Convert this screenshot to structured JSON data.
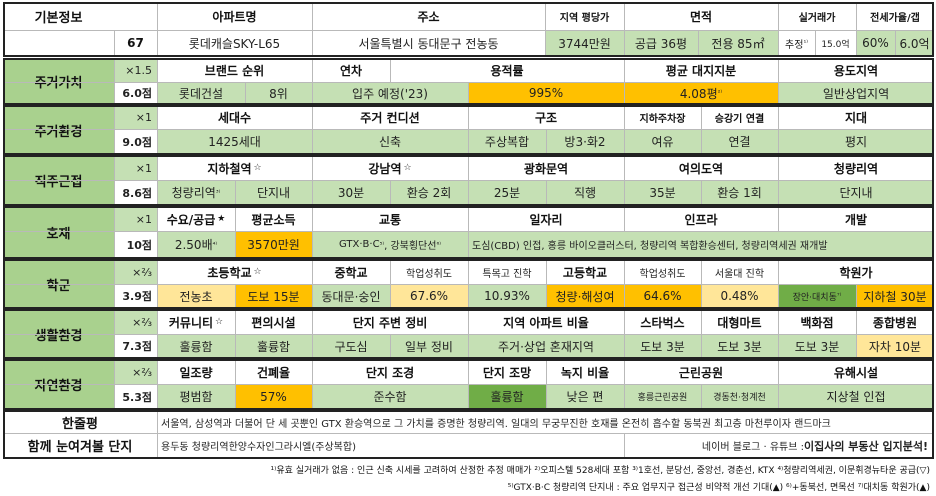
{
  "basic": {
    "label": "기본정보",
    "no": "67",
    "apt_name_h": "아파트명",
    "apt_name": "롯데캐슬SKY-L65",
    "addr_h": "주소",
    "addr": "서울특별시 동대문구 전농동",
    "region_price_h": "지역 평당가",
    "region_price": "3744만원",
    "area_h": "면적",
    "area_supply": "공급 36평",
    "area_private": "전용 85㎡",
    "deal_h": "실거래가",
    "deal": "추정",
    "deal_val": "15.0억",
    "jeonse_h": "전세가율/갭",
    "jeonse_rate": "60%",
    "jeonse_gap": "6.0억"
  },
  "c1": {
    "label": "주거가치",
    "mult": "×1.5",
    "score": "6.0점",
    "h": [
      "브랜드 순위",
      "연차",
      "용적률",
      "평균 대지지분",
      "용도지역"
    ],
    "brand": "롯데건설",
    "brand_rank": "8위",
    "year": "입주 예정('23)",
    "far": "995%",
    "land": "4.08평",
    "zone": "일반상업지역"
  },
  "c2": {
    "label": "주거환경",
    "mult": "×1",
    "score": "9.0점",
    "h": [
      "세대수",
      "주거 컨디션",
      "구조",
      "지하주차장",
      "승강기 연결",
      "지대"
    ],
    "v": [
      "1425세대",
      "신축",
      "주상복합",
      "방3·화2",
      "여유",
      "연결",
      "평지"
    ]
  },
  "c3": {
    "label": "직주근접",
    "mult": "×1",
    "score": "8.6점",
    "h": [
      "지하철역",
      "강남역",
      "광화문역",
      "여의도역",
      "청량리역"
    ],
    "star": "☆",
    "station": "청량리역",
    "station_dist": "단지내",
    "gangnam_t": "30분",
    "gangnam_x": "환승 2회",
    "gwang_t": "25분",
    "gwang_x": "직행",
    "yeoui_t": "35분",
    "yeoui_x": "환승 1회",
    "cheong": "단지내"
  },
  "c4": {
    "label": "호재",
    "mult": "×1",
    "score": "10점",
    "h": [
      "수요/공급",
      "평균소득",
      "교통",
      "일자리",
      "인프라",
      "개발"
    ],
    "star_b": "★",
    "supply": "2.50배",
    "income": "3570만원",
    "traffic1": "GTX·B·C",
    "traffic2": "강북횡단선",
    "jobs": "도심(CBD) 인접, 홍릉 바이오클러스터, 청량리역 복합환승센터, 청량리역세권 재개발"
  },
  "c5": {
    "label": "학군",
    "mult": "×⅔",
    "score": "3.9점",
    "h": [
      "초등학교",
      "중학교",
      "학업성취도",
      "특목고 진학",
      "고등학교",
      "학업성취도",
      "서울대 진학",
      "학원가"
    ],
    "elem": "전농초",
    "elem_dist": "도보 15분",
    "mid": "동대문·숭인",
    "mid_score": "67.6%",
    "special": "10.93%",
    "high": "청량·해성여",
    "high_score": "64.6%",
    "snu": "0.48%",
    "academy_a": "장안·대치동",
    "academy_b": "지하철 30분"
  },
  "c6": {
    "label": "생활환경",
    "mult": "×⅔",
    "score": "7.3점",
    "h": [
      "커뮤니티",
      "편의시설",
      "단지 주변 정비",
      "지역 아파트 비율",
      "스타벅스",
      "대형마트",
      "백화점",
      "종합병원"
    ],
    "v": [
      "훌륭함",
      "훌륭함",
      "구도심",
      "일부 정비",
      "주거·상업 혼재지역",
      "도보 3분",
      "도보 3분",
      "도보 3분",
      "자차 10분"
    ]
  },
  "c7": {
    "label": "자연환경",
    "mult": "×⅔",
    "score": "5.3점",
    "h": [
      "일조량",
      "건폐율",
      "단지 조경",
      "단지 조망",
      "녹지 비율",
      "근린공원",
      "유해시설"
    ],
    "v": [
      "평범함",
      "57%",
      "준수함",
      "훌륭함",
      "낮은 편",
      "홍릉근린공원",
      "경동천·청계천",
      "지상철 인접"
    ]
  },
  "review": {
    "label": "한줄평",
    "text": "서울역, 삼성역과 더불어 단 세 곳뿐인 GTX 환승역으로 그 가치를 증명한 청량리역. 일대의 무궁무진한 호재를 온전히 흡수할 동북권 최고층 마천루이자 랜드마크"
  },
  "compare": {
    "label": "함께 눈여겨볼 단지",
    "text": "용두동 청량리역한양수자인그라시엘(주상복합)",
    "blog": "네이버 블로그 · 유튜브 :",
    "brand": "이집사의 부동산 입지분석!"
  },
  "notes": {
    "line1": "¹⁾유효 실거래가 없음 : 인근 신축 시세를 고려하여 산정한 추정 매매가 ²⁾오피스텔 528세대 포함 ³⁾1호선, 분당선, 중앙선, 경춘선, KTX ⁴⁾청량리역세권, 이문휘경뉴타운 공급(▽)",
    "line2": "⁵⁾GTX·B·C 청량리역 단지내 : 주요 업무지구 접근성 비약적 개선 기대(▲) ⁶⁾+동북선, 면목선 ⁷⁾대치동 학원가(▲)"
  },
  "colors": {
    "header": "#ffffff",
    "category": "#a9d18e",
    "value": "#c5e0b4",
    "highlight": "#ffc000",
    "school": "#ffe699",
    "strong": "#70ad47"
  }
}
